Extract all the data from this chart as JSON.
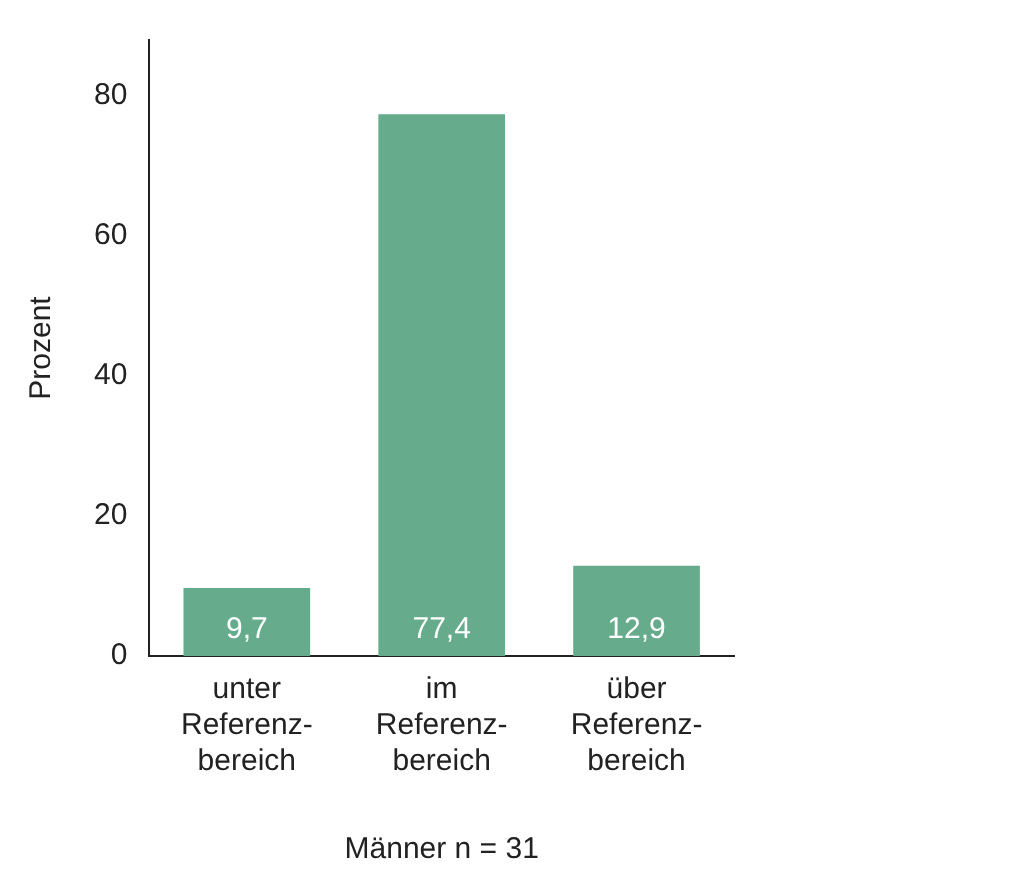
{
  "chart_data": {
    "type": "bar",
    "categories": [
      "unter\nReferenz-\nbereich",
      "im\nReferenz-\nbereich",
      "über\nReferenz-\nbereich"
    ],
    "values": [
      9.7,
      77.4,
      12.9
    ],
    "value_labels": [
      "9,7",
      "77,4",
      "12,9"
    ],
    "color": "#66ab8c",
    "ylabel": "Prozent",
    "xlabel": "Männer n = 31",
    "ylim": [
      0,
      88
    ],
    "yticks": [
      0,
      20,
      40,
      60,
      80
    ],
    "grid": false,
    "legend": false
  }
}
